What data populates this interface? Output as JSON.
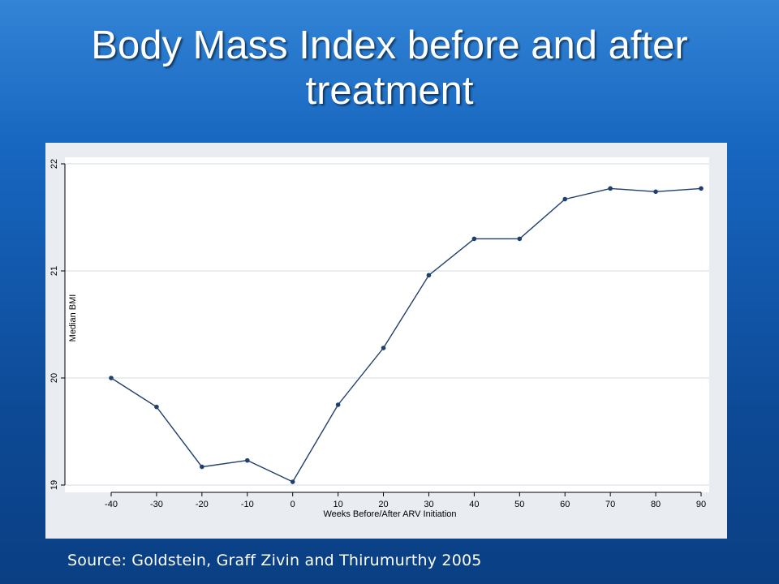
{
  "slide": {
    "title_line1": "Body Mass Index before and after",
    "title_line2": "treatment",
    "source": "Source: Goldstein, Graff Zivin and Thirumurthy 2005"
  },
  "colors": {
    "line": "#1f3f6e",
    "gridline": "#e9edf2",
    "plot_background": "#ffffff",
    "panel_background": "#e9edf2"
  },
  "chart_data": {
    "type": "line",
    "title": "",
    "xlabel": "Weeks Before/After ARV Initiation",
    "ylabel": "Median BMI",
    "x": [
      -40,
      -30,
      -20,
      -10,
      0,
      10,
      20,
      30,
      40,
      50,
      60,
      70,
      80,
      90
    ],
    "series": [
      {
        "values": [
          20.0,
          19.73,
          19.17,
          19.23,
          19.03,
          19.75,
          20.28,
          20.96,
          21.3,
          21.3,
          21.67,
          21.77,
          21.74,
          21.77
        ]
      }
    ],
    "xticks": [
      "-40",
      "-30",
      "-20",
      "-10",
      "0",
      "10",
      "20",
      "30",
      "40",
      "50",
      "60",
      "70",
      "80",
      "90"
    ],
    "yticks": [
      "19",
      "20",
      "21",
      "22"
    ],
    "xlim": [
      -40,
      90
    ],
    "ylim": [
      19,
      22
    ],
    "grid": true,
    "legend": "none"
  }
}
